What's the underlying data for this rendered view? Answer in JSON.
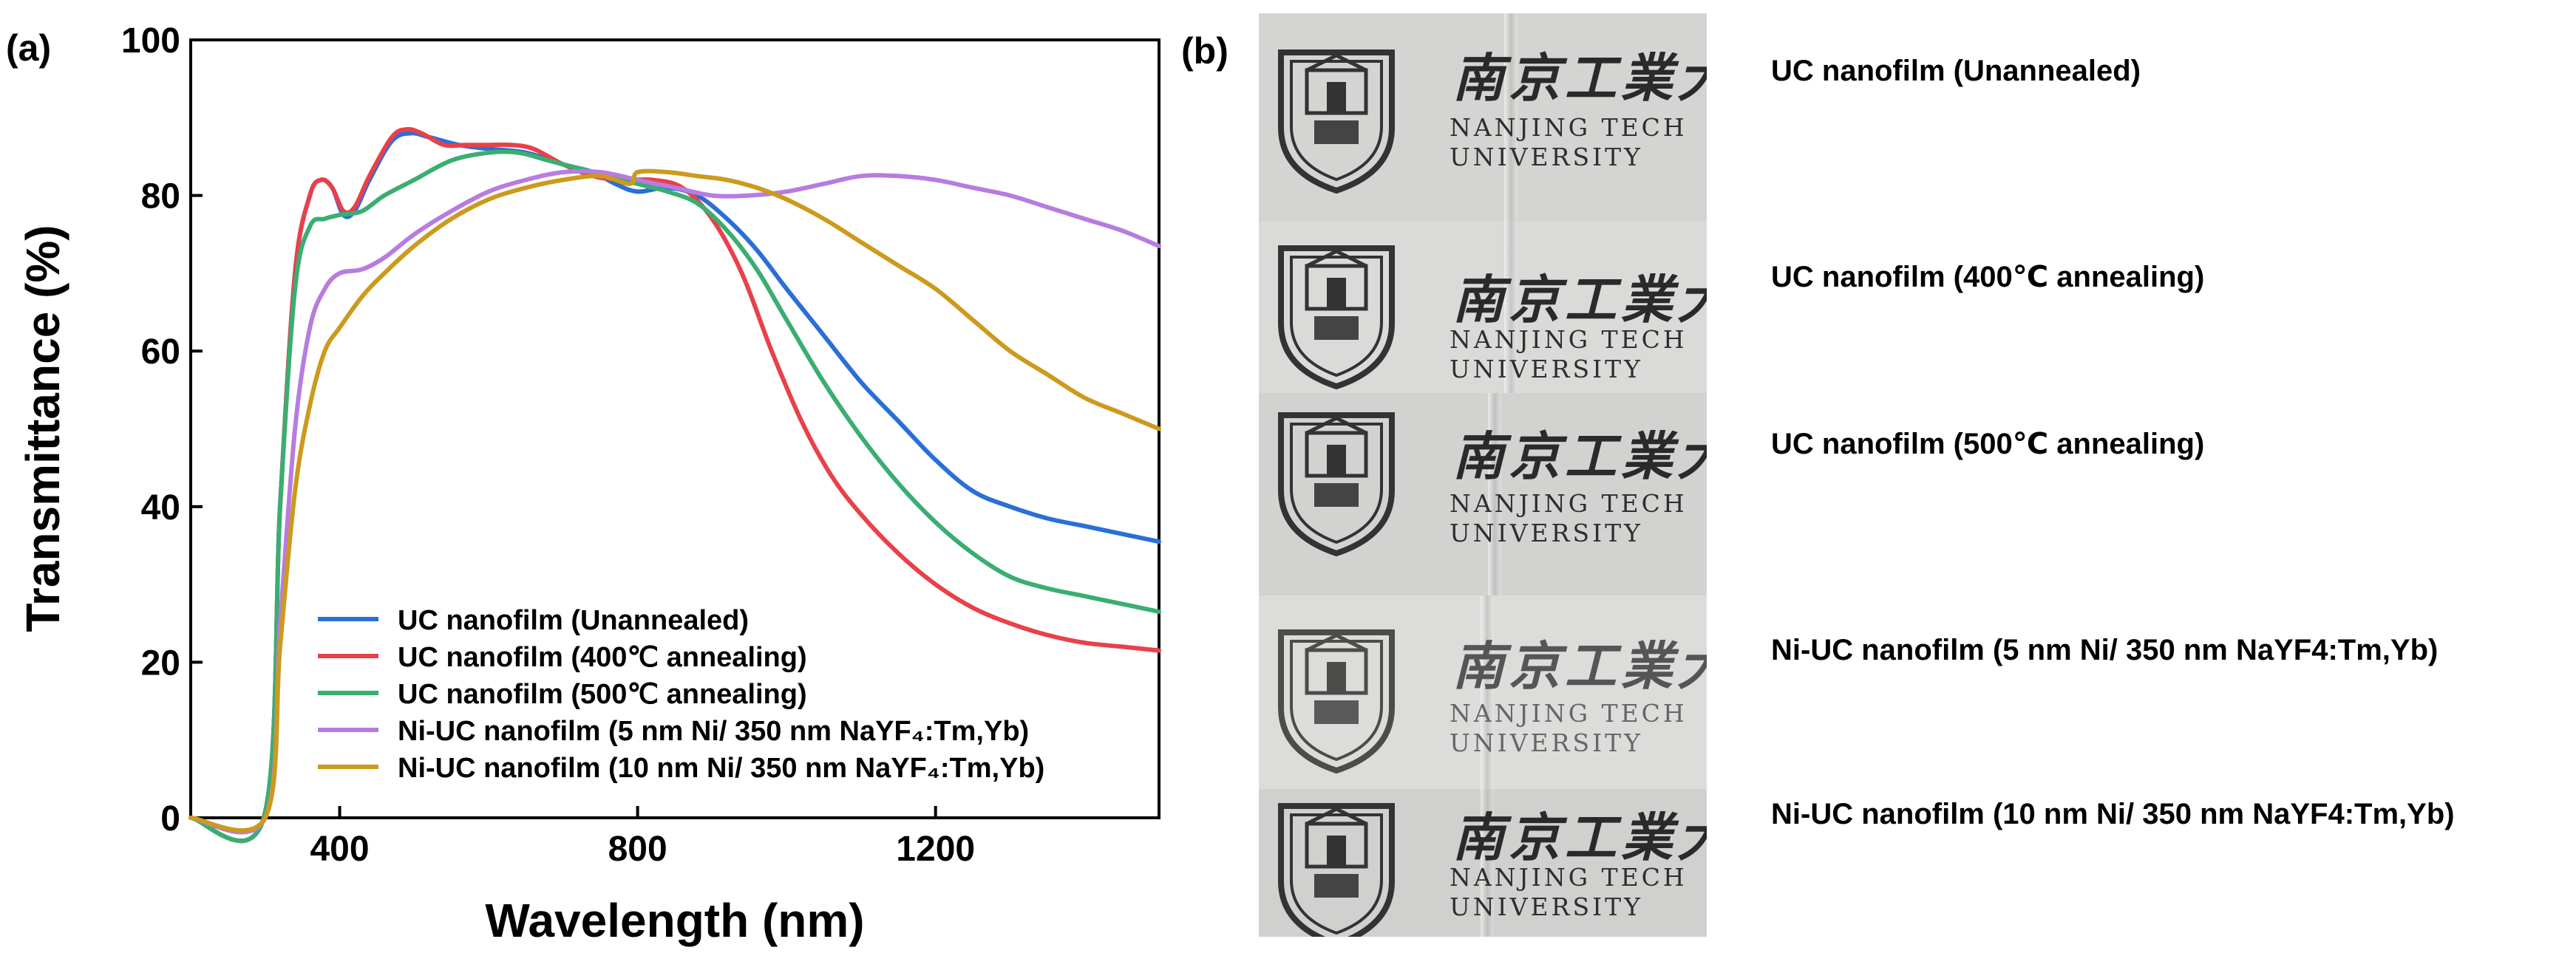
{
  "chart_data": {
    "type": "line",
    "panel_label": "(a)",
    "xlabel": "Wavelength (nm)",
    "ylabel": "Transmittance (%)",
    "xlim": [
      200,
      1500
    ],
    "ylim": [
      0,
      100
    ],
    "xticks": [
      400,
      800,
      1200
    ],
    "yticks": [
      0,
      20,
      40,
      60,
      80,
      100
    ],
    "legend": "bottom-left",
    "series": [
      {
        "name": "UC nanofilm (Unannealed)",
        "color": "#2a6fd6",
        "x": [
          200,
          298,
          320,
          340,
          360,
          375,
          390,
          405,
          420,
          440,
          470,
          495,
          520,
          560,
          600,
          650,
          700,
          740,
          770,
          800,
          840,
          880,
          920,
          960,
          1000,
          1050,
          1100,
          1150,
          1200,
          1250,
          1300,
          1350,
          1400,
          1450,
          1500
        ],
        "y": [
          0,
          0,
          40,
          70,
          80,
          82,
          81,
          77.5,
          78,
          82,
          87,
          88,
          87.5,
          86.5,
          86,
          85.5,
          84,
          83,
          81.5,
          80.5,
          81,
          80,
          77,
          73,
          68,
          62,
          56,
          51,
          46,
          42,
          40,
          38.5,
          37.5,
          36.5,
          35.5
        ]
      },
      {
        "name": "UC nanofilm (400℃ annealing)",
        "color": "#e8414a",
        "x": [
          200,
          298,
          320,
          340,
          360,
          375,
          390,
          405,
          420,
          440,
          470,
          490,
          510,
          540,
          570,
          600,
          630,
          660,
          700,
          740,
          780,
          820,
          860,
          900,
          940,
          980,
          1020,
          1060,
          1100,
          1150,
          1200,
          1250,
          1300,
          1350,
          1400,
          1450,
          1500
        ],
        "y": [
          0,
          0,
          40,
          70,
          80,
          82,
          81,
          78,
          78.5,
          82.5,
          87.5,
          88.5,
          88,
          86.5,
          86.5,
          86.5,
          86.5,
          86,
          84,
          82.5,
          82,
          82,
          81,
          77,
          70,
          60,
          51,
          44,
          39,
          34,
          30,
          27,
          25,
          23.5,
          22.5,
          22,
          21.5
        ]
      },
      {
        "name": "UC nanofilm (500℃ annealing)",
        "color": "#3aae72",
        "x": [
          200,
          298,
          320,
          340,
          360,
          380,
          400,
          430,
          460,
          500,
          550,
          600,
          640,
          680,
          720,
          760,
          800,
          840,
          880,
          920,
          960,
          1000,
          1050,
          1100,
          1150,
          1200,
          1250,
          1300,
          1350,
          1400,
          1450,
          1500
        ],
        "y": [
          0,
          0,
          40,
          68,
          76,
          77,
          77.5,
          78,
          80,
          82,
          84.5,
          85.5,
          85.5,
          84.5,
          83.5,
          82.5,
          81.5,
          80.5,
          79,
          75.5,
          70.5,
          64,
          56,
          49,
          43,
          38,
          34,
          31,
          29.5,
          28.5,
          27.5,
          26.5
        ]
      },
      {
        "name": "Ni-UC nanofilm (5 nm Ni/ 350 nm NaYF₄:Tm,Yb)",
        "color": "#b77ce0",
        "x": [
          200,
          300,
          320,
          340,
          360,
          380,
          400,
          430,
          460,
          500,
          550,
          600,
          650,
          700,
          750,
          800,
          850,
          900,
          950,
          1000,
          1050,
          1100,
          1150,
          1200,
          1250,
          1300,
          1350,
          1400,
          1450,
          1500
        ],
        "y": [
          0,
          0,
          25,
          50,
          63,
          68,
          70,
          70.5,
          72,
          75,
          78,
          80.5,
          82,
          83,
          83,
          82,
          81,
          80,
          80,
          80.5,
          81.5,
          82.5,
          82.5,
          82,
          81,
          80,
          78.5,
          77,
          75.5,
          73.5
        ]
      },
      {
        "name": "Ni-UC nanofilm (10 nm Ni/ 350 nm NaYF₄:Tm,Yb)",
        "color": "#cc9a1c",
        "x": [
          200,
          300,
          320,
          340,
          360,
          380,
          400,
          430,
          460,
          500,
          550,
          600,
          650,
          700,
          750,
          790,
          800,
          840,
          880,
          920,
          960,
          1000,
          1050,
          1100,
          1150,
          1200,
          1250,
          1300,
          1350,
          1400,
          1450,
          1500
        ],
        "y": [
          0,
          0,
          22,
          42,
          53,
          60,
          63,
          67,
          70,
          73.5,
          77,
          79.5,
          81,
          82,
          82.5,
          81.5,
          83,
          83,
          82.5,
          82,
          81,
          79.5,
          77,
          74,
          71,
          68,
          64,
          60,
          57,
          54,
          52,
          50
        ]
      }
    ]
  },
  "panel_b": {
    "label": "(b)",
    "logo_cn": "南京工業大學",
    "logo_en_1": "NANJING TECH",
    "logo_en_2": "UNIVERSITY",
    "captions": [
      "UC nanofilm (Unannealed)",
      "UC nanofilm (400℃ annealing)",
      "UC nanofilm (500℃ annealing)",
      "Ni-UC nanofilm (5 nm Ni/ 350 nm NaYF4:Tm,Yb)",
      "Ni-UC nanofilm (10 nm Ni/ 350 nm NaYF4:Tm,Yb)"
    ]
  }
}
